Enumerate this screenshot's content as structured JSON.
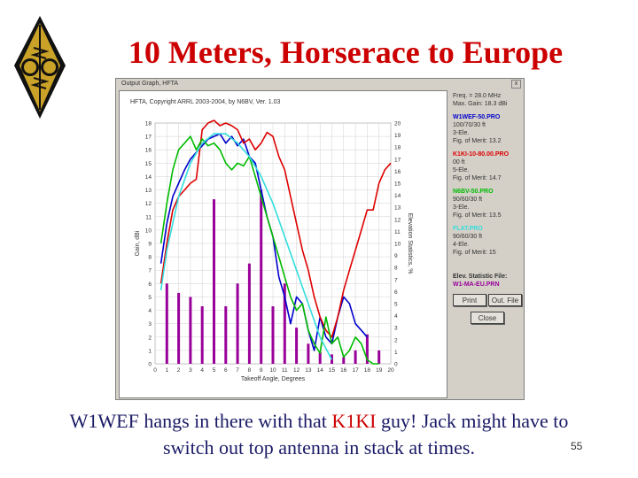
{
  "slide": {
    "title": "10 Meters, Horserace to Europe",
    "caption_part1": "W1WEF hangs in there with that ",
    "caption_highlight": "K1KI",
    "caption_part2": " guy! Jack might have to switch out top antenna in stack at times.",
    "page_number": "55",
    "title_color": "#cc0000",
    "caption_color": "#1a1a66",
    "highlight_color": "#cc0000"
  },
  "window": {
    "title": "Output Graph, HFTA",
    "close_glyph": "x",
    "copyright": "HFTA, Copyright ARRL 2003-2004, by N6BV, Ver. 1.03",
    "freq": "Freq. = 28.0 MHz",
    "max_gain": "Max. Gain: 18.3 dBi",
    "antennas": [
      {
        "name": "W1WEF-50.PRO",
        "lines": [
          "100/70/30 ft",
          "3-Ele.",
          "Fig. of Merit: 13.2"
        ],
        "color": "#0000cc"
      },
      {
        "name": "K1KI-10-80.00.PRO",
        "lines": [
          "00 ft",
          "5-Ele.",
          "Fig. of Merit: 14.7"
        ],
        "color": "#dd0000"
      },
      {
        "name": "N6BV-50.PRO",
        "lines": [
          "90/60/30 ft",
          "3-Ele.",
          "Fig. of Merit: 13.5"
        ],
        "color": "#00bb00"
      },
      {
        "name": "FLAT.PRO",
        "lines": [
          "90/60/30 ft",
          "4-Ele.",
          "Fig. of Merit: 15"
        ],
        "color": "#33dddd"
      }
    ],
    "elev_label": "Elev. Statistic File:",
    "elev_file": "W1-MA-EU.PRN",
    "elev_color": "#990099",
    "buttons": {
      "print": "Print",
      "out_file": "Out. File",
      "close": "Close"
    }
  },
  "chart_data": {
    "type": "line",
    "xlabel": "Takeoff Angle, Degrees",
    "ylabel": "Gain, dBi",
    "y2label": "Elevation Statistics, %",
    "xlim": [
      0,
      20
    ],
    "ylim": [
      0,
      18
    ],
    "y2lim": [
      0,
      20
    ],
    "x_ticks": [
      "0",
      "1",
      "2",
      "3",
      "4",
      "5",
      "6",
      "7",
      "8",
      "9",
      "10",
      "11",
      "12",
      "13",
      "14",
      "15",
      "16",
      "17",
      "18",
      "19",
      "20"
    ],
    "y_ticks": [
      "0",
      "1",
      "2",
      "3",
      "4",
      "5",
      "6",
      "7",
      "8",
      "9",
      "10",
      "11",
      "12",
      "13",
      "14",
      "15",
      "16",
      "17",
      "18"
    ],
    "y2_ticks": [
      "0",
      "1",
      "2",
      "3",
      "4",
      "5",
      "6",
      "7",
      "8",
      "9",
      "10",
      "11",
      "12",
      "13",
      "14",
      "15",
      "16",
      "17",
      "18",
      "19",
      "20"
    ],
    "grid": true,
    "bars": {
      "name": "W1-MA-EU.PRN",
      "color": "#990099",
      "x": [
        1,
        2,
        3,
        4,
        5,
        6,
        7,
        8,
        9,
        10,
        11,
        12,
        13,
        14,
        15,
        16,
        17,
        18,
        19
      ],
      "values": [
        6.0,
        5.3,
        5.0,
        4.3,
        12.3,
        4.3,
        6.0,
        7.5,
        13.0,
        4.3,
        6.0,
        2.7,
        1.5,
        0.9,
        0.7,
        0.5,
        1.0,
        2.2,
        1.0
      ]
    },
    "series": [
      {
        "name": "W1WEF-50.PRO",
        "color": "#0000cc",
        "x": [
          0.5,
          1,
          1.5,
          2,
          2.5,
          3,
          3.5,
          4,
          4.5,
          5,
          5.5,
          6,
          6.5,
          7,
          7.5,
          8,
          8.5,
          9,
          9.5,
          10,
          10.5,
          11,
          11.5,
          12,
          12.5,
          13,
          13.5,
          14,
          14.5,
          15,
          15.5,
          16,
          16.5,
          17,
          17.5,
          18
        ],
        "y": [
          7.5,
          10.5,
          12.5,
          13.5,
          14.5,
          15.3,
          15.8,
          16.3,
          16.8,
          17.0,
          17.2,
          16.5,
          17.0,
          16.3,
          16.8,
          15.5,
          15.0,
          13.0,
          11.0,
          9.5,
          6.5,
          5.0,
          3.0,
          5.0,
          4.5,
          2.5,
          1.0,
          3.5,
          2.0,
          1.5,
          3.5,
          5.0,
          4.5,
          3.0,
          2.5,
          2.0
        ]
      },
      {
        "name": "K1KI-10-80.00.PRO",
        "color": "#dd0000",
        "x": [
          0.5,
          1,
          1.5,
          2,
          2.5,
          3,
          3.5,
          4,
          4.5,
          5,
          5.5,
          6,
          6.5,
          7,
          7.5,
          8,
          8.5,
          9,
          9.5,
          10,
          10.5,
          11,
          11.5,
          12,
          12.5,
          13,
          13.5,
          14,
          14.5,
          15,
          15.5,
          16,
          16.5,
          17,
          17.5,
          18,
          18.5,
          19,
          19.5,
          20
        ],
        "y": [
          6.0,
          9.0,
          11.5,
          12.5,
          13.0,
          13.5,
          13.8,
          17.5,
          18.0,
          18.2,
          17.8,
          18.0,
          17.8,
          17.5,
          16.5,
          16.8,
          16.0,
          16.5,
          17.3,
          17.0,
          15.5,
          14.5,
          12.5,
          10.5,
          8.5,
          7.0,
          5.0,
          3.5,
          2.5,
          2.0,
          3.5,
          5.5,
          7.0,
          8.5,
          10.0,
          11.5,
          11.5,
          13.5,
          14.5,
          15.0
        ]
      },
      {
        "name": "N6BV-50.PRO",
        "color": "#00bb00",
        "x": [
          0.5,
          1,
          1.5,
          2,
          2.5,
          3,
          3.5,
          4,
          4.5,
          5,
          5.5,
          6,
          6.5,
          7,
          7.5,
          8,
          8.5,
          9,
          9.5,
          10,
          10.5,
          11,
          11.5,
          12,
          12.5,
          13,
          13.5,
          14,
          14.5,
          15,
          15.5,
          16,
          16.5,
          17,
          17.5,
          18,
          18.5,
          19
        ],
        "y": [
          9.0,
          12.0,
          14.5,
          16.0,
          16.5,
          17.0,
          16.0,
          16.8,
          16.3,
          16.5,
          16.0,
          15.0,
          14.5,
          15.0,
          14.8,
          15.5,
          14.0,
          12.5,
          11.0,
          9.5,
          8.0,
          6.5,
          5.0,
          4.0,
          4.5,
          2.5,
          1.5,
          0.8,
          3.5,
          1.5,
          2.0,
          0.5,
          1.0,
          2.0,
          1.5,
          0.3,
          0.0,
          0.0
        ]
      },
      {
        "name": "FLAT.PRO",
        "color": "#33dddd",
        "x": [
          0.5,
          1,
          2,
          3,
          4,
          5,
          6,
          7,
          8,
          9,
          10,
          11,
          12,
          13,
          14,
          15
        ],
        "y": [
          5.5,
          8.5,
          12.5,
          15.0,
          16.5,
          17.2,
          17.2,
          16.5,
          15.5,
          14.0,
          12.0,
          9.5,
          7.0,
          4.5,
          2.0,
          0.3
        ]
      }
    ]
  }
}
